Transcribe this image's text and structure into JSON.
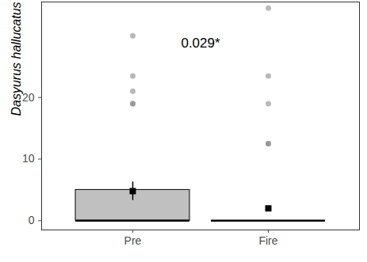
{
  "chart_data": {
    "type": "box",
    "ylabel": "Dasyurus hallucatus",
    "annotation": "0.029*",
    "categories": [
      "Pre",
      "Fire"
    ],
    "box_low": [
      0,
      0
    ],
    "box_high": [
      5,
      0
    ],
    "median": [
      0,
      0
    ],
    "mean": [
      4.8,
      2
    ],
    "mean_error": [
      1.5,
      0
    ],
    "outliers": [
      [
        30,
        23.5,
        21,
        19,
        19
      ],
      [
        34.5,
        23.5,
        19,
        12.5,
        12.5
      ]
    ],
    "color": "#c0c0c0",
    "ylim": [
      -1.5,
      35.5
    ],
    "yticks": [
      0,
      10,
      20
    ]
  }
}
